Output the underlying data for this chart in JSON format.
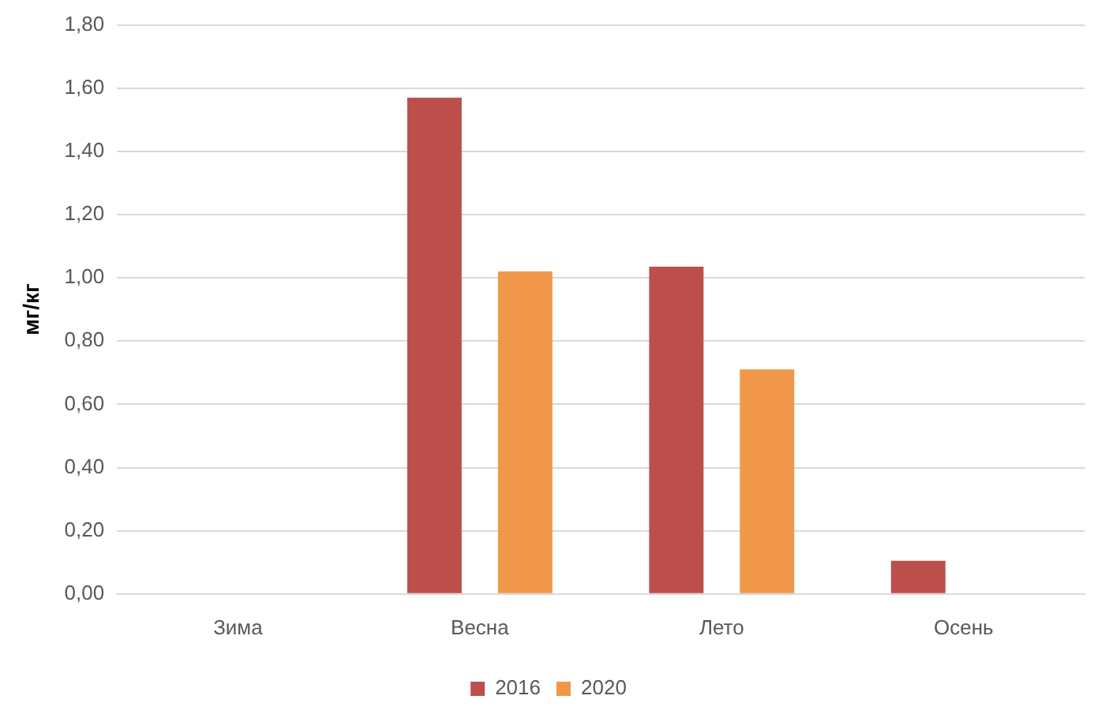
{
  "chart_data": {
    "type": "bar",
    "ylabel": "мг/кг",
    "categories": [
      "Зима",
      "Весна",
      "Лето",
      "Осень"
    ],
    "series": [
      {
        "name": "2016",
        "color": "#bc4f4c",
        "values": [
          0,
          1.57,
          1.035,
          0.105
        ]
      },
      {
        "name": "2020",
        "color": "#f0974a",
        "values": [
          0,
          1.02,
          0.71,
          0
        ]
      }
    ],
    "ylim": [
      0,
      1.8
    ],
    "yticks": [
      {
        "value": 0,
        "label": "0,00"
      },
      {
        "value": 0.2,
        "label": "0,20"
      },
      {
        "value": 0.4,
        "label": "0,40"
      },
      {
        "value": 0.6,
        "label": "0,60"
      },
      {
        "value": 0.8,
        "label": "0,80"
      },
      {
        "value": 1,
        "label": "1,00"
      },
      {
        "value": 1.2,
        "label": "1,20"
      },
      {
        "value": 1.4,
        "label": "1,40"
      },
      {
        "value": 1.6,
        "label": "1,60"
      },
      {
        "value": 1.8,
        "label": "1,80"
      }
    ],
    "grid": "y",
    "legend": "bottom"
  }
}
